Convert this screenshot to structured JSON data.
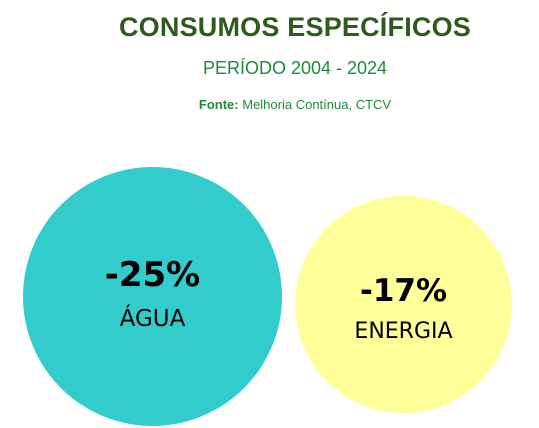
{
  "header": {
    "title": "CONSUMOS ESPECÍFICOS",
    "subtitle": "PERÍODO 2004 - 2024",
    "source_label": "Fonte:",
    "source_text": " Melhoria Contínua, CTCV"
  },
  "metrics": [
    {
      "value": "-25%",
      "label": "ÁGUA",
      "color": "#33CCCC"
    },
    {
      "value": "-17%",
      "label": "ENERGIA",
      "color": "#FFFF99"
    }
  ],
  "colors": {
    "title": "#2E5A1C",
    "subtitle": "#1F8A3C"
  }
}
